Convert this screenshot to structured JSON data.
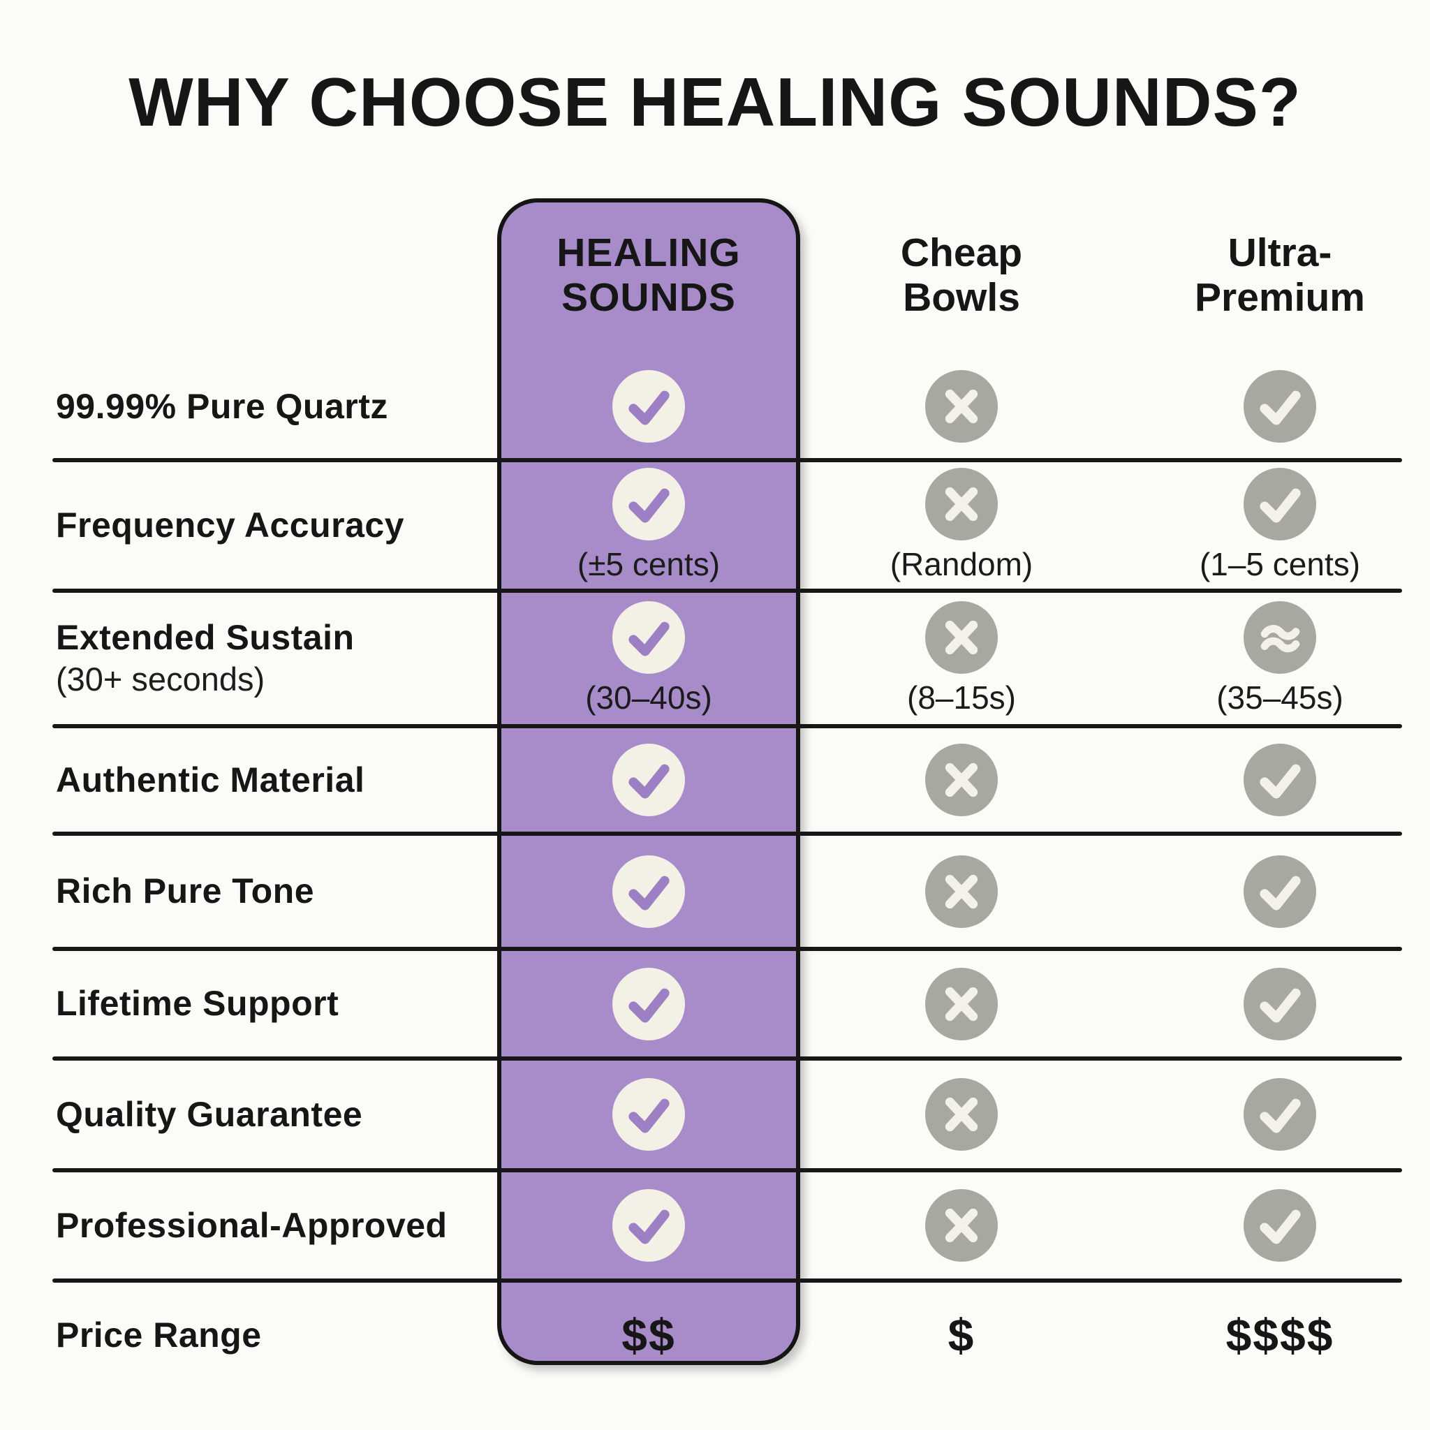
{
  "title": "WHY CHOOSE HEALING SOUNDS?",
  "columns": [
    {
      "label": "HEALING SOUNDS",
      "highlight": true
    },
    {
      "label": "Cheap Bowls",
      "highlight": false
    },
    {
      "label": "Ultra-Premium",
      "highlight": false
    }
  ],
  "rows": [
    {
      "label": "99.99% Pure Quartz",
      "cells": [
        {
          "icon": "check"
        },
        {
          "icon": "cross"
        },
        {
          "icon": "check"
        }
      ]
    },
    {
      "label": "Frequency Accuracy",
      "cells": [
        {
          "icon": "check",
          "note": "(±5 cents)"
        },
        {
          "icon": "cross",
          "note": "(Random)"
        },
        {
          "icon": "check",
          "note": "(1–5 cents)"
        }
      ]
    },
    {
      "label": "Extended Sustain",
      "sublabel": "(30+ seconds)",
      "cells": [
        {
          "icon": "check",
          "note": "(30–40s)"
        },
        {
          "icon": "cross",
          "note": "(8–15s)"
        },
        {
          "icon": "approx",
          "note": "(35–45s)"
        }
      ]
    },
    {
      "label": "Authentic Material",
      "cells": [
        {
          "icon": "check"
        },
        {
          "icon": "cross"
        },
        {
          "icon": "check"
        }
      ]
    },
    {
      "label": "Rich Pure Tone",
      "cells": [
        {
          "icon": "check"
        },
        {
          "icon": "cross"
        },
        {
          "icon": "check"
        }
      ]
    },
    {
      "label": "Lifetime Support",
      "cells": [
        {
          "icon": "check"
        },
        {
          "icon": "cross"
        },
        {
          "icon": "check"
        }
      ]
    },
    {
      "label": "Quality Guarantee",
      "cells": [
        {
          "icon": "check"
        },
        {
          "icon": "cross"
        },
        {
          "icon": "check"
        }
      ]
    },
    {
      "label": "Professional-Approved",
      "cells": [
        {
          "icon": "check"
        },
        {
          "icon": "cross"
        },
        {
          "icon": "check"
        }
      ]
    },
    {
      "label": "Price Range",
      "cells": [
        {
          "text": "$$"
        },
        {
          "text": "$"
        },
        {
          "text": "$$$$"
        }
      ]
    }
  ],
  "colors": {
    "background": "#fcfbf8",
    "ink": "#161616",
    "highlight_purple": "#a78cc9",
    "circle_cream": "#f3f0e6",
    "check_purple": "#9d80c4",
    "circle_gray": "#a7a8a0",
    "mark_cream": "#f4f1e8"
  }
}
